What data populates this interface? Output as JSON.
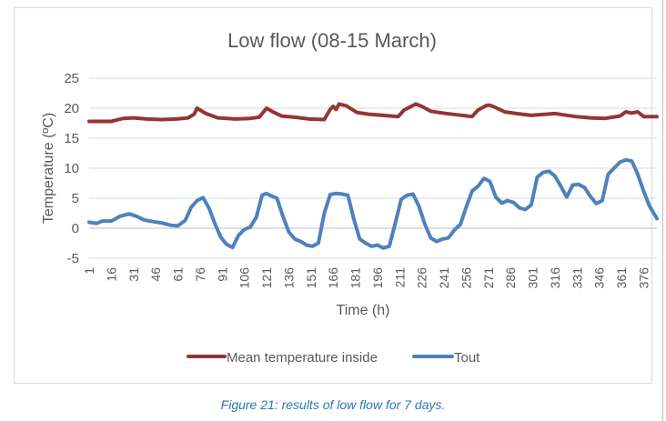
{
  "chart_data": {
    "type": "line",
    "title": "Low flow (08-15 March)",
    "xlabel": "Time (h)",
    "ylabel": "Temperature (ºC)",
    "ylim": [
      -5,
      25
    ],
    "yticks": [
      "25",
      "20",
      "15",
      "10",
      "5",
      "0",
      "-5"
    ],
    "x_tick_labels": [
      "1",
      "16",
      "31",
      "46",
      "61",
      "76",
      "91",
      "106",
      "121",
      "136",
      "151",
      "166",
      "181",
      "196",
      "211",
      "226",
      "241",
      "256",
      "271",
      "286",
      "301",
      "316",
      "331",
      "346",
      "361",
      "376"
    ],
    "grid": true,
    "legend_position": "bottom",
    "series": [
      {
        "name": "Mean temperature inside",
        "color": "#943634",
        "x": [
          1,
          10,
          16,
          24,
          31,
          40,
          50,
          60,
          68,
          72,
          74,
          80,
          88,
          100,
          110,
          116,
          121,
          126,
          131,
          140,
          150,
          160,
          164,
          166,
          168,
          170,
          175,
          182,
          190,
          200,
          210,
          214,
          218,
          222,
          226,
          232,
          240,
          250,
          260,
          264,
          270,
          272,
          276,
          282,
          290,
          300,
          310,
          316,
          322,
          330,
          340,
          350,
          360,
          364,
          368,
          372,
          376,
          385
        ],
        "values": [
          17.8,
          17.8,
          17.8,
          18.3,
          18.4,
          18.2,
          18.1,
          18.2,
          18.4,
          19.0,
          20.0,
          19.1,
          18.4,
          18.2,
          18.3,
          18.5,
          20.0,
          19.3,
          18.7,
          18.5,
          18.2,
          18.1,
          19.8,
          20.3,
          19.8,
          20.7,
          20.4,
          19.3,
          19.0,
          18.8,
          18.6,
          19.7,
          20.2,
          20.7,
          20.3,
          19.5,
          19.2,
          18.9,
          18.6,
          19.7,
          20.5,
          20.5,
          20.1,
          19.4,
          19.1,
          18.8,
          19.0,
          19.1,
          18.9,
          18.6,
          18.4,
          18.3,
          18.7,
          19.4,
          19.2,
          19.4,
          18.6,
          18.6
        ]
      },
      {
        "name": "Tout",
        "color": "#4f81bd",
        "x": [
          1,
          6,
          10,
          16,
          22,
          28,
          33,
          38,
          44,
          50,
          56,
          61,
          66,
          70,
          74,
          78,
          82,
          86,
          90,
          94,
          98,
          102,
          106,
          110,
          114,
          118,
          121,
          124,
          128,
          132,
          136,
          140,
          144,
          148,
          152,
          156,
          160,
          164,
          168,
          172,
          176,
          180,
          184,
          188,
          192,
          196,
          200,
          204,
          208,
          212,
          216,
          220,
          224,
          228,
          232,
          236,
          240,
          244,
          248,
          252,
          256,
          260,
          264,
          268,
          272,
          276,
          280,
          284,
          288,
          292,
          296,
          300,
          304,
          308,
          312,
          316,
          320,
          324,
          328,
          332,
          336,
          340,
          344,
          348,
          352,
          356,
          360,
          364,
          368,
          372,
          376,
          380,
          385
        ],
        "values": [
          1.0,
          0.8,
          1.2,
          1.2,
          2.0,
          2.4,
          2.0,
          1.4,
          1.1,
          0.9,
          0.5,
          0.4,
          1.3,
          3.5,
          4.6,
          5.1,
          3.4,
          0.8,
          -1.5,
          -2.7,
          -3.2,
          -1.2,
          -0.2,
          0.2,
          1.8,
          5.5,
          5.8,
          5.4,
          5.0,
          2.0,
          -0.6,
          -1.8,
          -2.2,
          -2.8,
          -3.0,
          -2.5,
          2.5,
          5.6,
          5.8,
          5.7,
          5.5,
          1.5,
          -1.8,
          -2.5,
          -3.0,
          -2.8,
          -3.3,
          -3.0,
          0.8,
          4.8,
          5.5,
          5.7,
          3.7,
          0.7,
          -1.6,
          -2.2,
          -1.8,
          -1.6,
          -0.3,
          0.6,
          3.5,
          6.2,
          7.0,
          8.3,
          7.8,
          5.2,
          4.2,
          4.6,
          4.3,
          3.4,
          3.1,
          3.9,
          8.5,
          9.3,
          9.5,
          8.7,
          7.0,
          5.2,
          7.2,
          7.3,
          6.8,
          5.3,
          4.1,
          4.6,
          9.0,
          10.0,
          11.0,
          11.4,
          11.2,
          9.0,
          6.2,
          3.7,
          1.6
        ]
      }
    ]
  },
  "caption": "Figure 21: results of low flow for 7 days."
}
